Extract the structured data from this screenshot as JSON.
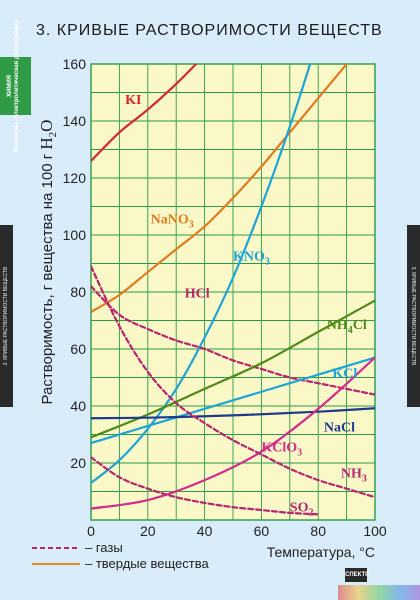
{
  "poster": {
    "title": "3. КРИВЫЕ  РАСТВОРИМОСТИ  ВЕЩЕСТВ",
    "side_strip_top": "ХИМИЯ",
    "side_strip_bottom": "Растворы. Электролитическая диссоциация",
    "side_left_text": "3. КРИВЫЕ РАСТВОРИМОСТИ ВЕЩЕСТВ",
    "side_right_text": "3. КРИВЫЕ РАСТВОРИМОСТИ ВЕЩЕСТВ",
    "publisher": "СПЕКТР"
  },
  "colors": {
    "background": "#d9ecfa",
    "plot_background": "#fbf8c8",
    "grid": "#2a9a4a",
    "gas_line": "#b8246d",
    "solid_line": "#e68a2a"
  },
  "chart_data": {
    "type": "line",
    "title": "3. КРИВЫЕ  РАСТВОРИМОСТИ  ВЕЩЕСТВ",
    "xlabel": "Температура, °C",
    "ylabel_main": "Растворимость, г вещества на 100 г ",
    "ylabel_formula": "H",
    "ylabel_sub": "2",
    "ylabel_tail": "O",
    "xlim": [
      0,
      100
    ],
    "ylim": [
      0,
      160
    ],
    "xticks": [
      "0",
      "20",
      "40",
      "60",
      "80",
      "100"
    ],
    "yticks": [
      "20",
      "40",
      "60",
      "80",
      "100",
      "120",
      "140",
      "160"
    ],
    "grid": true,
    "legend": [
      {
        "label": "– газы",
        "style": "dashed",
        "color": "#b8246d"
      },
      {
        "label": "– твердые вещества",
        "style": "solid",
        "color": "#e68a2a"
      }
    ],
    "series": [
      {
        "name": "KI",
        "color": "#d8262e",
        "dashed": false,
        "x": [
          0,
          10,
          20,
          30,
          37
        ],
        "y": [
          126,
          136,
          144,
          153,
          160
        ],
        "label": {
          "x": 12,
          "y": 146,
          "parts": [
            [
              "KI",
              ""
            ]
          ]
        }
      },
      {
        "name": "NaNO3",
        "color": "#e07b1e",
        "dashed": false,
        "x": [
          0,
          10,
          20,
          30,
          40,
          50,
          60,
          70,
          80,
          90
        ],
        "y": [
          73,
          79,
          87,
          95,
          103,
          113,
          124,
          136,
          148,
          160
        ],
        "label": {
          "x": 21,
          "y": 104,
          "parts": [
            [
              "NaNO",
              ""
            ],
            [
              "3",
              "sub"
            ]
          ]
        }
      },
      {
        "name": "KNO3",
        "color": "#1ea3d6",
        "dashed": false,
        "x": [
          0,
          10,
          20,
          30,
          40,
          50,
          60,
          70,
          80,
          90
        ],
        "y": [
          13,
          21,
          32,
          46,
          64,
          85,
          110,
          138,
          169,
          202
        ],
        "label": {
          "x": 50,
          "y": 91,
          "parts": [
            [
              "KNO",
              ""
            ],
            [
              "3",
              "sub"
            ]
          ]
        }
      },
      {
        "name": "HCl",
        "color": "#b8246d",
        "dashed": true,
        "x": [
          0,
          10,
          20,
          30,
          40,
          50,
          60,
          70,
          80,
          90,
          100
        ],
        "y": [
          82,
          72,
          67,
          63,
          60,
          56,
          53,
          50,
          48,
          46,
          44
        ],
        "label": {
          "x": 33,
          "y": 78,
          "parts": [
            [
              "HCl",
              ""
            ]
          ]
        }
      },
      {
        "name": "NH4Cl",
        "color": "#4f8a16",
        "dashed": false,
        "x": [
          0,
          20,
          40,
          60,
          80,
          100
        ],
        "y": [
          29,
          37,
          46,
          55,
          66,
          77
        ],
        "label": {
          "x": 83,
          "y": 67,
          "parts": [
            [
              "NH",
              ""
            ],
            [
              "4",
              "sub"
            ],
            [
              "Cl",
              ""
            ]
          ]
        }
      },
      {
        "name": "KCl",
        "color": "#1ea3d6",
        "dashed": false,
        "x": [
          0,
          20,
          40,
          60,
          80,
          100
        ],
        "y": [
          27,
          33,
          39,
          45,
          51,
          57
        ],
        "label": {
          "x": 85,
          "y": 50,
          "parts": [
            [
              "KCl",
              ""
            ]
          ]
        }
      },
      {
        "name": "NaCl",
        "color": "#1e3a8c",
        "dashed": false,
        "x": [
          0,
          20,
          40,
          60,
          80,
          100
        ],
        "y": [
          35.7,
          35.9,
          36.4,
          37.1,
          38.0,
          39.2
        ],
        "label": {
          "x": 82,
          "y": 31,
          "parts": [
            [
              "NaCl",
              ""
            ]
          ]
        }
      },
      {
        "name": "KClO3",
        "color": "#d42a8c",
        "dashed": false,
        "x": [
          0,
          20,
          40,
          60,
          80,
          100
        ],
        "y": [
          4,
          7,
          14,
          24,
          39,
          57
        ],
        "label": {
          "x": 60,
          "y": 24,
          "parts": [
            [
              "KClO",
              ""
            ],
            [
              "3",
              "sub"
            ]
          ]
        }
      },
      {
        "name": "NH3",
        "color": "#b8246d",
        "dashed": true,
        "x": [
          0,
          10,
          20,
          30,
          40,
          50,
          60,
          70,
          80,
          90,
          100
        ],
        "y": [
          89,
          68,
          52,
          41,
          34,
          28,
          23,
          18,
          14,
          11,
          8
        ],
        "label": {
          "x": 88,
          "y": 15,
          "parts": [
            [
              "NH",
              ""
            ],
            [
              "3",
              "sub"
            ]
          ]
        }
      },
      {
        "name": "SO2",
        "color": "#b8246d",
        "dashed": true,
        "x": [
          0,
          10,
          20,
          30,
          40,
          50,
          60,
          70,
          80
        ],
        "y": [
          22,
          15,
          11,
          8,
          6,
          4.5,
          3.5,
          2.5,
          2
        ],
        "label": {
          "x": 70,
          "y": 3,
          "parts": [
            [
              "SO",
              ""
            ],
            [
              "2",
              "sub"
            ]
          ]
        }
      }
    ]
  }
}
